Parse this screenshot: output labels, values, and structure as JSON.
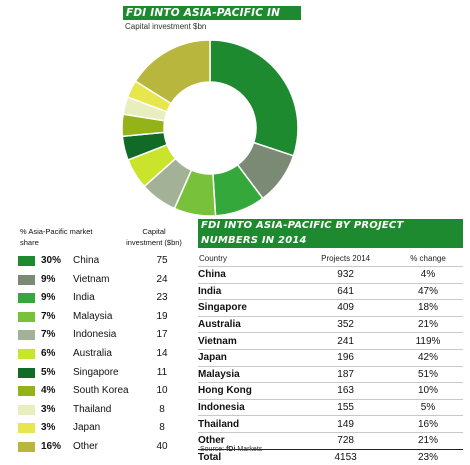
{
  "colors": {
    "China": "#1e8a2f",
    "Vietnam": "#7a8a74",
    "India": "#35a83b",
    "Malaysia": "#78c13a",
    "Indonesia": "#a3b296",
    "Australia": "#c9e42a",
    "Singapore": "#116b27",
    "South Korea": "#94b318",
    "Thailand": "#e8eebe",
    "Japan": "#e7e64d",
    "Other": "#b8b63c"
  },
  "chart_data": [
    {
      "type": "pie",
      "title": "FDI INTO ASIA-PACIFIC IN 2014",
      "subtitle": "Capital investment $bn",
      "legend_headers": {
        "share": "% Asia-Pacific market share",
        "capital": "Capital investment ($bn)"
      },
      "slices": [
        {
          "label": "China",
          "share_label": "30%",
          "value": 75
        },
        {
          "label": "Vietnam",
          "share_label": "9%",
          "value": 24
        },
        {
          "label": "India",
          "share_label": "9%",
          "value": 23
        },
        {
          "label": "Malaysia",
          "share_label": "7%",
          "value": 19
        },
        {
          "label": "Indonesia",
          "share_label": "7%",
          "value": 17
        },
        {
          "label": "Australia",
          "share_label": "6%",
          "value": 14
        },
        {
          "label": "Singapore",
          "share_label": "5%",
          "value": 11
        },
        {
          "label": "South Korea",
          "share_label": "4%",
          "value": 10
        },
        {
          "label": "Thailand",
          "share_label": "3%",
          "value": 8
        },
        {
          "label": "Japan",
          "share_label": "3%",
          "value": 8
        },
        {
          "label": "Other",
          "share_label": "16%",
          "value": 40
        }
      ]
    },
    {
      "type": "table",
      "title": "FDI INTO ASIA-PACIFIC BY PROJECT NUMBERS IN 2014",
      "columns": [
        "Country",
        "Projects 2014",
        "% change"
      ],
      "rows": [
        [
          "China",
          "932",
          "4%"
        ],
        [
          "India",
          "641",
          "47%"
        ],
        [
          "Singapore",
          "409",
          "18%"
        ],
        [
          "Australia",
          "352",
          "21%"
        ],
        [
          "Vietnam",
          "241",
          "119%"
        ],
        [
          "Japan",
          "196",
          "42%"
        ],
        [
          "Malaysia",
          "187",
          "51%"
        ],
        [
          "Hong Kong",
          "163",
          "10%"
        ],
        [
          "Indonesia",
          "155",
          "5%"
        ],
        [
          "Thailand",
          "149",
          "16%"
        ],
        [
          "Other",
          "728",
          "21%"
        ],
        [
          "Total",
          "4153",
          "23%"
        ]
      ],
      "source_label": "Source:",
      "source_brand": "fDi",
      "source_name": "Markets"
    }
  ]
}
